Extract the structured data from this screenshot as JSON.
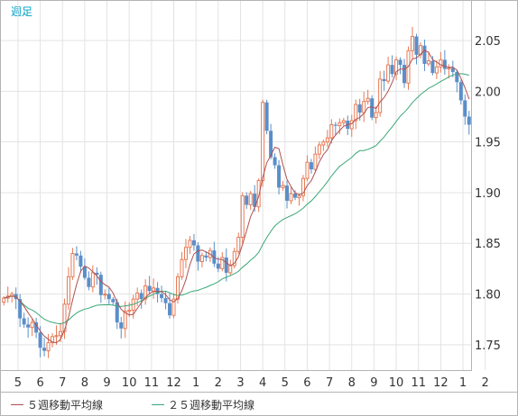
{
  "chart_data": {
    "type": "candlestick",
    "period_label": "週足",
    "y_ticks": [
      "2.05",
      "2.00",
      "1.95",
      "1.90",
      "1.85",
      "1.80",
      "1.75"
    ],
    "y_tick_values": [
      2.05,
      2.0,
      1.95,
      1.9,
      1.85,
      1.8,
      1.75
    ],
    "ylim": [
      1.725,
      2.09
    ],
    "x_ticks": [
      "5",
      "6",
      "7",
      "8",
      "9",
      "10",
      "11",
      "12",
      "1",
      "2",
      "3",
      "4",
      "5",
      "6",
      "7",
      "8",
      "9",
      "10",
      "11",
      "12",
      "1",
      "2"
    ],
    "x_tick_positions": [
      3.5,
      9,
      14.5,
      20,
      25.5,
      31,
      36.5,
      42,
      47.5,
      53,
      58.5,
      64,
      69.5,
      75,
      80.5,
      86,
      91.5,
      97,
      102.5,
      108,
      113.5,
      119
    ],
    "grid": true,
    "colors": {
      "up": "#e87a55",
      "down": "#5a8ec9",
      "ma5": "#b05050",
      "ma25": "#3aa878",
      "grid": "#e3e3e3",
      "border": "#b4b4b4"
    },
    "legend": [
      {
        "label": "５週移動平均線",
        "color": "#b05050"
      },
      {
        "label": "２５週移動平均線",
        "color": "#3aa878"
      }
    ],
    "closes": [
      1.796,
      1.798,
      1.8,
      1.795,
      1.776,
      1.77,
      1.767,
      1.772,
      1.762,
      1.747,
      1.744,
      1.752,
      1.758,
      1.759,
      1.763,
      1.79,
      1.817,
      1.84,
      1.838,
      1.827,
      1.816,
      1.807,
      1.821,
      1.819,
      1.799,
      1.8,
      1.795,
      1.792,
      1.772,
      1.766,
      1.783,
      1.784,
      1.795,
      1.801,
      1.795,
      1.808,
      1.803,
      1.806,
      1.8,
      1.796,
      1.791,
      1.779,
      1.795,
      1.817,
      1.834,
      1.846,
      1.853,
      1.848,
      1.832,
      1.838,
      1.836,
      1.843,
      1.83,
      1.825,
      1.836,
      1.821,
      1.828,
      1.842,
      1.856,
      1.897,
      1.888,
      1.899,
      1.886,
      1.912,
      1.989,
      1.961,
      1.935,
      1.927,
      1.905,
      1.907,
      1.892,
      1.899,
      1.895,
      1.897,
      1.914,
      1.93,
      1.923,
      1.938,
      1.947,
      1.95,
      1.954,
      1.967,
      1.966,
      1.969,
      1.971,
      1.963,
      1.971,
      1.987,
      1.979,
      1.99,
      1.993,
      1.974,
      1.979,
      2.012,
      2.01,
      2.026,
      2.017,
      2.031,
      2.026,
      2.008,
      2.04,
      2.054,
      2.036,
      2.045,
      2.027,
      2.03,
      2.018,
      2.024,
      2.031,
      2.022,
      2.023,
      2.019,
      2.009,
      1.991,
      1.975,
      1.967
    ]
  }
}
